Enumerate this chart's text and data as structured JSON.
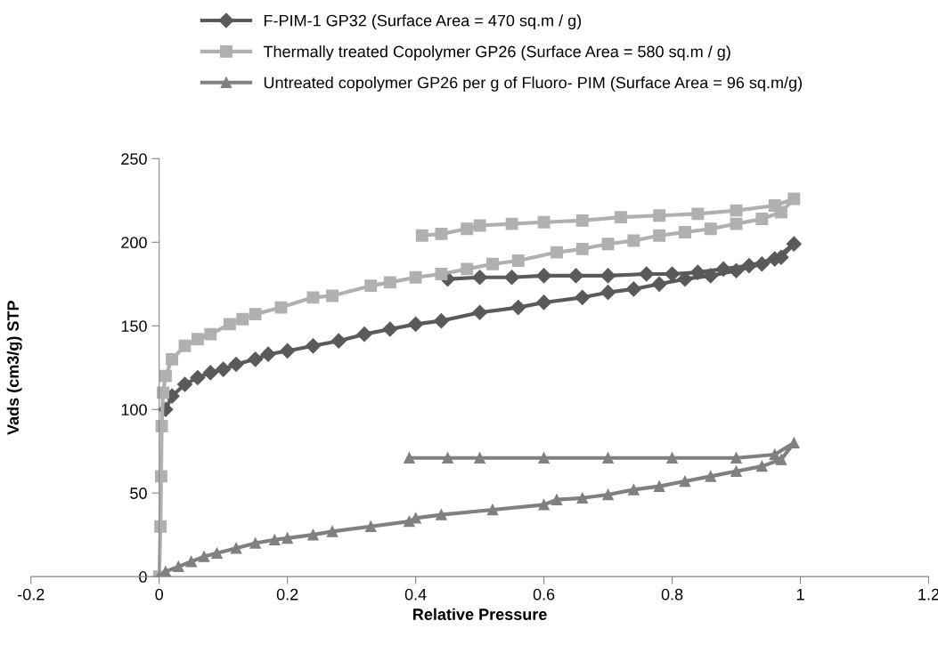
{
  "chart_data": {
    "type": "line",
    "xlabel": "Relative Pressure",
    "ylabel": "Vads (cm3/g) STP",
    "xlim": [
      -0.2,
      1.2
    ],
    "xticks": [
      {
        "value": -0.2,
        "label": "-0.2"
      },
      0,
      0.2,
      0.4,
      0.6,
      0.8,
      1,
      1.2
    ],
    "ylim": [
      0,
      250
    ],
    "yticks": [
      0,
      50,
      100,
      150,
      200,
      250
    ],
    "grid": false,
    "legend": "top",
    "line_style": "solid",
    "series": [
      {
        "name": "F-PIM-1 GP32 (Surface Area = 470 sq.m / g)",
        "color": "#5a5a5a",
        "marker": "diamond",
        "x": [
          0.01,
          0.02,
          0.04,
          0.06,
          0.08,
          0.1,
          0.12,
          0.15,
          0.17,
          0.2,
          0.24,
          0.28,
          0.32,
          0.36,
          0.4,
          0.44,
          0.5,
          0.56,
          0.6,
          0.66,
          0.7,
          0.74,
          0.78,
          0.82,
          0.86,
          0.9,
          0.94,
          0.97,
          0.99,
          0.96,
          0.92,
          0.88,
          0.84,
          0.8,
          0.76,
          0.7,
          0.65,
          0.6,
          0.55,
          0.5,
          0.45
        ],
        "values": [
          100,
          108,
          115,
          119,
          122,
          124,
          127,
          130,
          133,
          135,
          138,
          141,
          145,
          148,
          151,
          153,
          158,
          161,
          164,
          167,
          170,
          172,
          175,
          178,
          180,
          183,
          187,
          191,
          199,
          190,
          186,
          184,
          182,
          181,
          181,
          180,
          180,
          180,
          179,
          179,
          178
        ]
      },
      {
        "name": "Thermally treated Copolymer GP26 (Surface Area = 580 sq.m / g)",
        "color": "#b0b0b0",
        "marker": "square",
        "x": [
          0,
          0.002,
          0.003,
          0.004,
          0.006,
          0.01,
          0.02,
          0.04,
          0.06,
          0.08,
          0.11,
          0.13,
          0.15,
          0.19,
          0.24,
          0.27,
          0.33,
          0.36,
          0.4,
          0.44,
          0.48,
          0.52,
          0.56,
          0.62,
          0.66,
          0.7,
          0.74,
          0.78,
          0.82,
          0.86,
          0.9,
          0.94,
          0.97,
          0.99,
          0.96,
          0.9,
          0.84,
          0.78,
          0.72,
          0.66,
          0.6,
          0.55,
          0.5,
          0.48,
          0.44,
          0.41
        ],
        "values": [
          0,
          30,
          60,
          90,
          110,
          120,
          130,
          138,
          142,
          145,
          151,
          154,
          157,
          161,
          167,
          168,
          174,
          176,
          179,
          181,
          184,
          187,
          189,
          194,
          196,
          199,
          201,
          204,
          206,
          208,
          211,
          214,
          218,
          226,
          222,
          219,
          217,
          216,
          215,
          213,
          212,
          211,
          210,
          208,
          205,
          204
        ]
      },
      {
        "name": "Untreated copolymer GP26 per g of Fluoro- PIM (Surface Area = 96 sq.m/g)",
        "color": "#808080",
        "marker": "triangle",
        "x": [
          0,
          0.01,
          0.03,
          0.05,
          0.07,
          0.09,
          0.12,
          0.15,
          0.18,
          0.2,
          0.24,
          0.27,
          0.33,
          0.39,
          0.4,
          0.44,
          0.52,
          0.6,
          0.62,
          0.66,
          0.7,
          0.74,
          0.78,
          0.82,
          0.86,
          0.9,
          0.94,
          0.97,
          0.99,
          0.96,
          0.9,
          0.8,
          0.7,
          0.6,
          0.5,
          0.45,
          0.39
        ],
        "values": [
          0,
          3,
          6,
          9,
          12,
          14,
          17,
          20,
          22,
          23,
          25,
          27,
          30,
          33,
          35,
          37,
          40,
          43,
          46,
          47,
          49,
          52,
          54,
          57,
          60,
          63,
          66,
          70,
          80,
          73,
          71,
          71,
          71,
          71,
          71,
          71,
          71
        ]
      }
    ]
  }
}
